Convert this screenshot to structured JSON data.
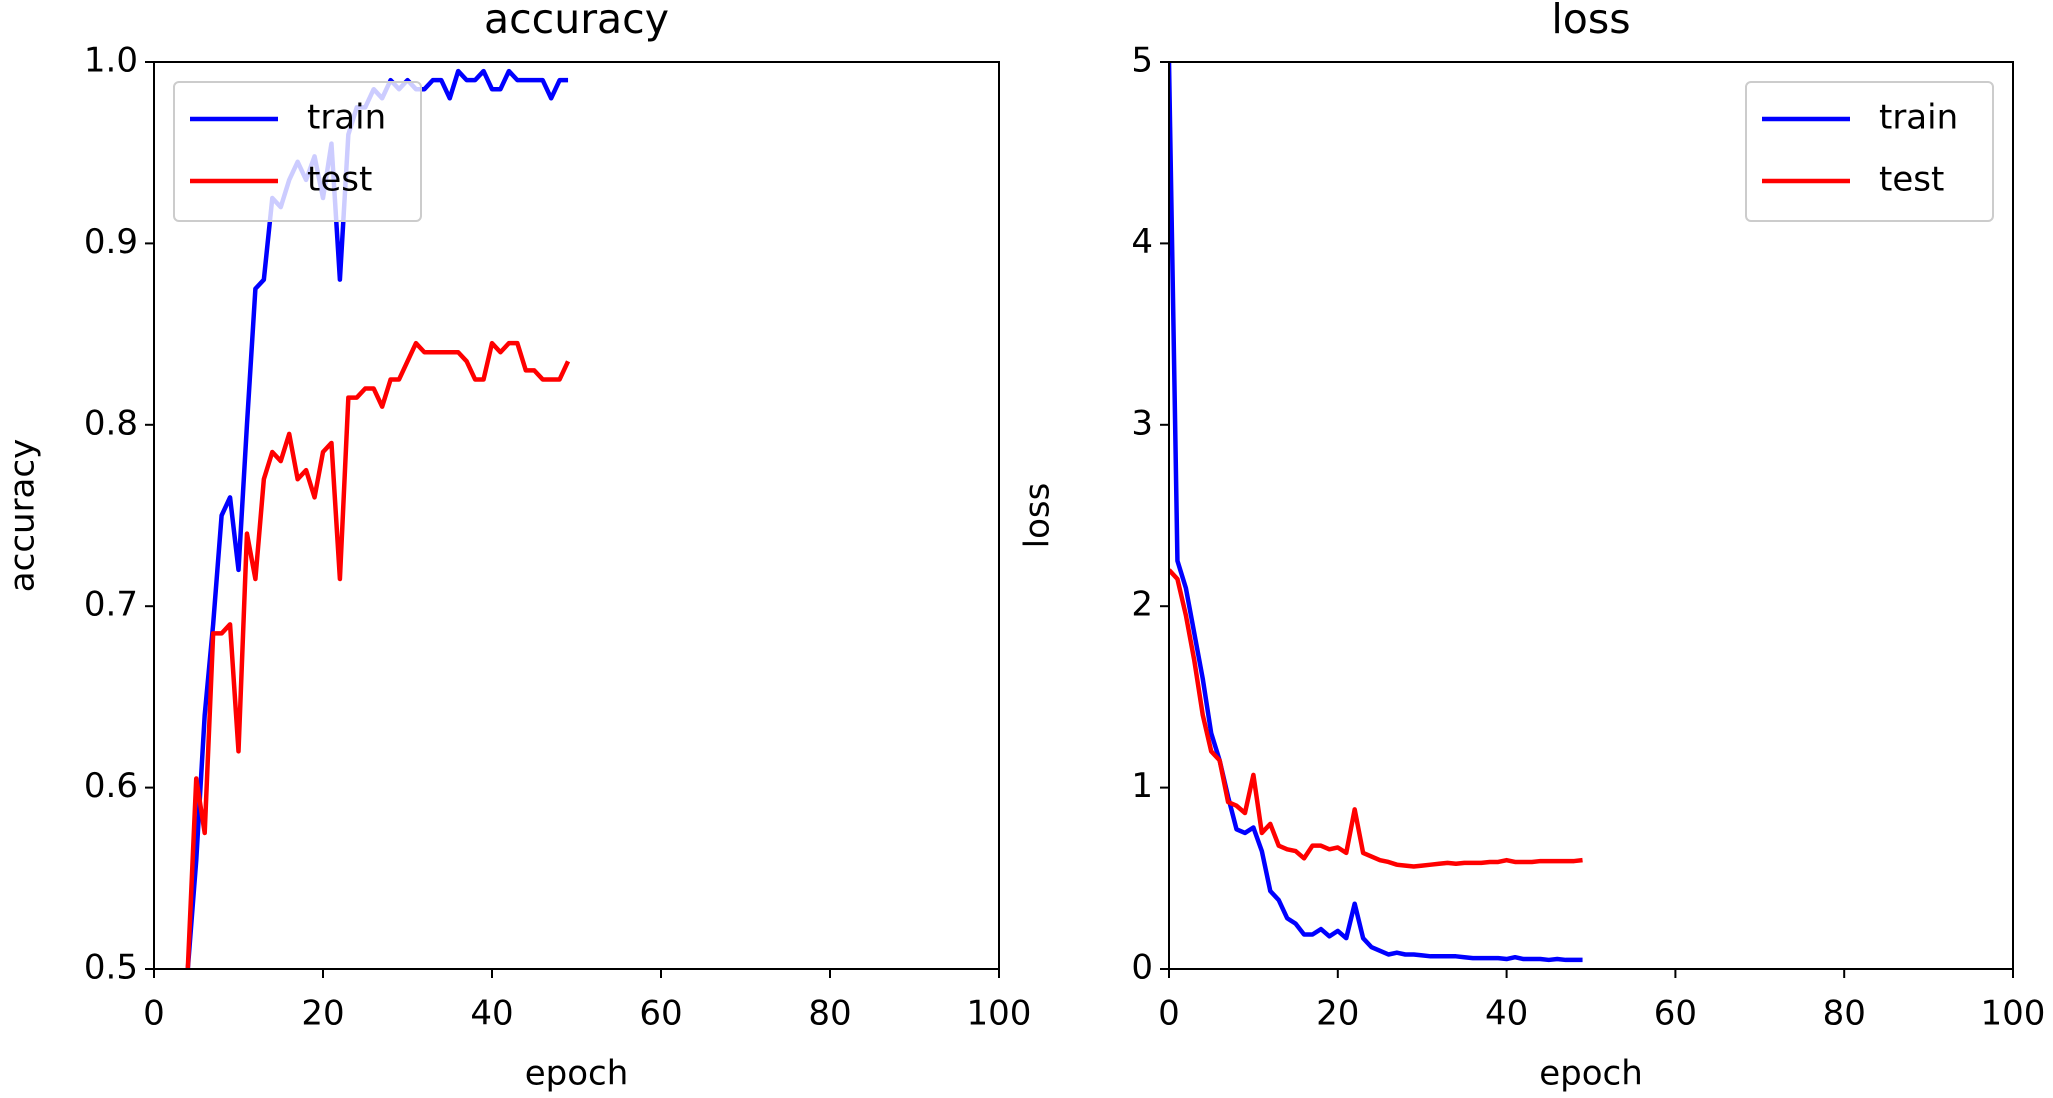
{
  "chart_data": [
    {
      "type": "line",
      "title": "accuracy",
      "x_label": "epoch",
      "y_label": "accuracy",
      "xlim": [
        0,
        100
      ],
      "xticks": [
        0,
        20,
        40,
        60,
        80,
        100
      ],
      "ylim": [
        0.5,
        1.0
      ],
      "yticks": [
        0.5,
        0.6,
        0.7,
        0.8,
        0.9,
        {
          "value": 1.0,
          "label": "1.0"
        }
      ],
      "legend": "upper left",
      "grid": false,
      "x": [
        4,
        5,
        6,
        7,
        8,
        9,
        10,
        11,
        12,
        13,
        14,
        15,
        16,
        17,
        18,
        19,
        20,
        21,
        22,
        23,
        24,
        25,
        26,
        27,
        28,
        29,
        30,
        31,
        32,
        33,
        34,
        35,
        36,
        37,
        38,
        39,
        40,
        41,
        42,
        43,
        44,
        45,
        46,
        47,
        48,
        49
      ],
      "series": [
        {
          "name": "train",
          "color": "#0000ff",
          "values": [
            0.5,
            0.56,
            0.64,
            0.69,
            0.75,
            0.76,
            0.72,
            0.8,
            0.875,
            0.88,
            0.925,
            0.92,
            0.935,
            0.945,
            0.935,
            0.948,
            0.925,
            0.955,
            0.88,
            0.96,
            0.975,
            0.975,
            0.985,
            0.98,
            0.99,
            0.985,
            0.99,
            0.985,
            0.985,
            0.99,
            0.99,
            0.98,
            0.995,
            0.99,
            0.99,
            0.995,
            0.985,
            0.985,
            0.995,
            0.99,
            0.99,
            0.99,
            0.99,
            0.98,
            0.99,
            0.99
          ]
        },
        {
          "name": "test",
          "color": "#ff0000",
          "values": [
            0.5,
            0.605,
            0.575,
            0.685,
            0.685,
            0.69,
            0.62,
            0.74,
            0.715,
            0.77,
            0.785,
            0.78,
            0.795,
            0.77,
            0.775,
            0.76,
            0.785,
            0.79,
            0.715,
            0.815,
            0.815,
            0.82,
            0.82,
            0.81,
            0.825,
            0.825,
            0.835,
            0.845,
            0.84,
            0.84,
            0.84,
            0.84,
            0.84,
            0.835,
            0.825,
            0.825,
            0.845,
            0.84,
            0.845,
            0.845,
            0.83,
            0.83,
            0.825,
            0.825,
            0.825,
            0.835
          ]
        }
      ]
    },
    {
      "type": "line",
      "title": "loss",
      "x_label": "epoch",
      "y_label": "loss",
      "xlim": [
        0,
        100
      ],
      "xticks": [
        0,
        20,
        40,
        60,
        80,
        100
      ],
      "ylim": [
        0,
        5
      ],
      "yticks": [
        0,
        1,
        2,
        3,
        4,
        5
      ],
      "legend": "upper right",
      "grid": false,
      "x": [
        0,
        1,
        2,
        3,
        4,
        5,
        6,
        7,
        8,
        9,
        10,
        11,
        12,
        13,
        14,
        15,
        16,
        17,
        18,
        19,
        20,
        21,
        22,
        23,
        24,
        25,
        26,
        27,
        28,
        29,
        30,
        31,
        32,
        33,
        34,
        35,
        36,
        37,
        38,
        39,
        40,
        41,
        42,
        43,
        44,
        45,
        46,
        47,
        48,
        49
      ],
      "series": [
        {
          "name": "train",
          "color": "#0000ff",
          "values": [
            5.0,
            2.25,
            2.1,
            1.85,
            1.6,
            1.3,
            1.15,
            0.95,
            0.77,
            0.75,
            0.78,
            0.65,
            0.43,
            0.38,
            0.28,
            0.25,
            0.19,
            0.19,
            0.22,
            0.18,
            0.21,
            0.17,
            0.36,
            0.17,
            0.12,
            0.1,
            0.08,
            0.09,
            0.08,
            0.08,
            0.075,
            0.07,
            0.07,
            0.07,
            0.07,
            0.065,
            0.06,
            0.06,
            0.06,
            0.06,
            0.055,
            0.065,
            0.055,
            0.055,
            0.055,
            0.05,
            0.055,
            0.05,
            0.05,
            0.05
          ]
        },
        {
          "name": "test",
          "color": "#ff0000",
          "values": [
            2.2,
            2.15,
            1.95,
            1.7,
            1.4,
            1.2,
            1.15,
            0.92,
            0.9,
            0.86,
            1.07,
            0.75,
            0.8,
            0.68,
            0.66,
            0.65,
            0.61,
            0.68,
            0.68,
            0.66,
            0.67,
            0.64,
            0.88,
            0.64,
            0.62,
            0.6,
            0.59,
            0.575,
            0.57,
            0.565,
            0.57,
            0.575,
            0.58,
            0.585,
            0.58,
            0.585,
            0.585,
            0.585,
            0.59,
            0.59,
            0.6,
            0.59,
            0.59,
            0.59,
            0.595,
            0.595,
            0.595,
            0.595,
            0.595,
            0.6
          ]
        }
      ]
    }
  ]
}
